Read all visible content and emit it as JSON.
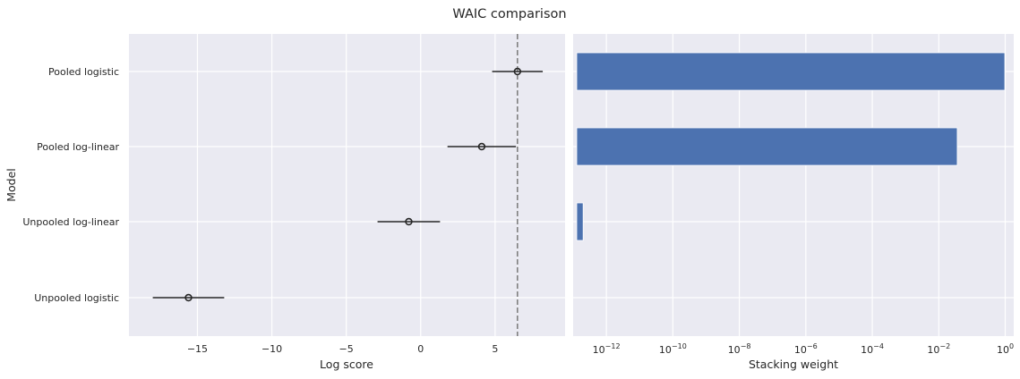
{
  "chart_data": [
    {
      "type": "scatter",
      "title": "WAIC comparison",
      "xlabel": "Log score",
      "ylabel": "Model",
      "categories": [
        "Pooled logistic",
        "Pooled log-linear",
        "Unpooled log-linear",
        "Unpooled logistic"
      ],
      "values": [
        6.5,
        4.1,
        -0.8,
        -15.6
      ],
      "error_low": [
        4.8,
        1.8,
        -2.9,
        -18.0
      ],
      "error_high": [
        8.2,
        6.4,
        1.3,
        -13.2
      ],
      "reference_line": 6.5,
      "xlim": [
        -19.6,
        9.7
      ],
      "xticks": [
        -15,
        -10,
        -5,
        0,
        5
      ],
      "xtick_labels": [
        "−15",
        "−10",
        "−5",
        "0",
        "5"
      ],
      "grid": true
    },
    {
      "type": "bar",
      "orientation": "horizontal",
      "xlabel": "Stacking weight",
      "x_scale": "log",
      "categories": [
        "Pooled logistic",
        "Pooled log-linear",
        "Unpooled log-linear",
        "Unpooled logistic"
      ],
      "values": [
        0.97,
        0.036,
        2e-13,
        0
      ],
      "xlim": [
        1e-13,
        1.8
      ],
      "xticks": [
        1e-12,
        1e-10,
        1e-08,
        1e-06,
        0.0001,
        0.01,
        1
      ],
      "xtick_labels": [
        {
          "base": "10",
          "exp": "−12"
        },
        {
          "base": "10",
          "exp": "−10"
        },
        {
          "base": "10",
          "exp": "−8"
        },
        {
          "base": "10",
          "exp": "−6"
        },
        {
          "base": "10",
          "exp": "−4"
        },
        {
          "base": "10",
          "exp": "−2"
        },
        {
          "base": "10",
          "exp": "0"
        }
      ],
      "grid": true
    }
  ],
  "colors": {
    "axes_bg": "#eaeaf2",
    "grid": "#ffffff",
    "bar": "#4c72b0",
    "point": "#262626",
    "reference": "#808080"
  }
}
